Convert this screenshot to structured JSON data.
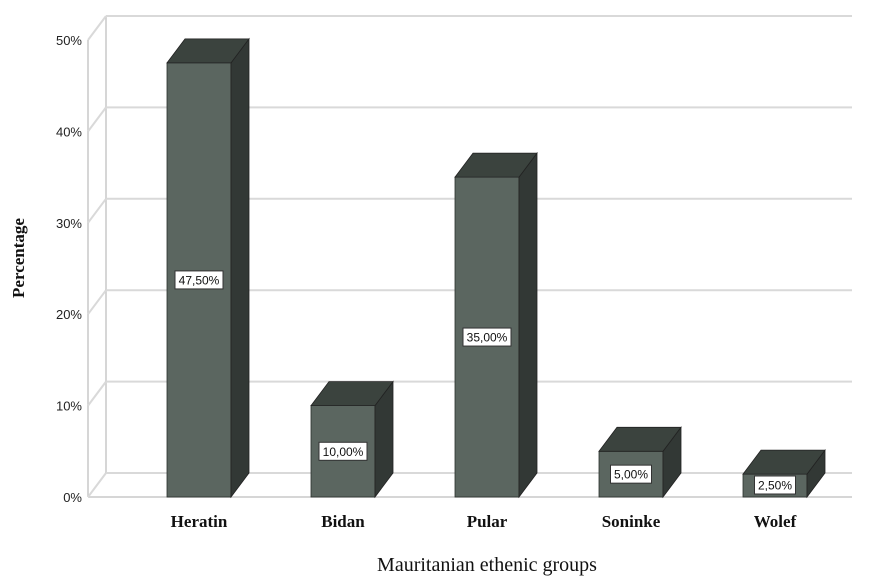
{
  "chart_data": {
    "type": "bar",
    "style": "3d",
    "categories": [
      "Heratin",
      "Bidan",
      "Pular",
      "Soninke",
      "Wolef"
    ],
    "values": [
      47.5,
      10.0,
      35.0,
      5.0,
      2.5
    ],
    "data_labels": [
      "47,50%",
      "10,00%",
      "35,00%",
      "5,00%",
      "2,50%"
    ],
    "y_ticks": [
      0,
      10,
      20,
      30,
      40,
      50
    ],
    "y_tick_labels": [
      "0%",
      "10%",
      "20%",
      "30%",
      "40%",
      "50%"
    ],
    "ylim": [
      0,
      50
    ],
    "xlabel": "Mauritanian ethenic groups",
    "ylabel": "Percentage",
    "grid": true,
    "legend": "none",
    "colors": {
      "bar_front": "#5b6660",
      "bar_top": "#3b433e",
      "bar_side": "#323835",
      "grid": "#d9d9d9",
      "axis": "#c8c8c8"
    }
  }
}
